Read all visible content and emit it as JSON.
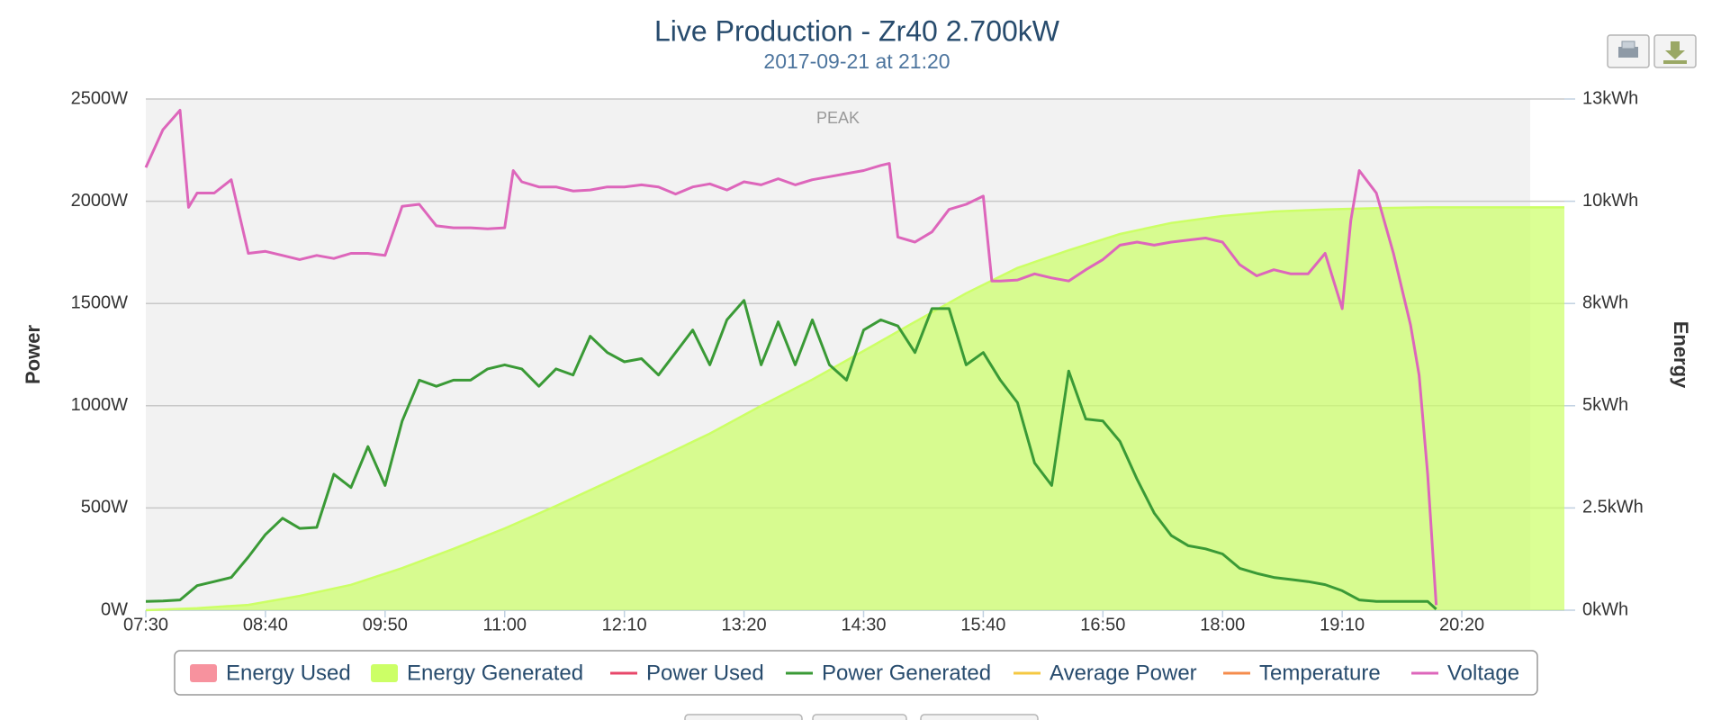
{
  "chart_data": {
    "type": "line",
    "title": "Live Production - Zr40 2.700kW",
    "subtitle": "2017-09-21 at 21:20",
    "y_label": "Power",
    "y2_label": "Energy",
    "xlim": [
      "07:30",
      "21:20"
    ],
    "xticks": [
      "07:30",
      "08:40",
      "09:50",
      "11:00",
      "12:10",
      "13:20",
      "14:30",
      "15:40",
      "16:50",
      "18:00",
      "19:10",
      "20:20"
    ],
    "ylim": [
      0,
      2500
    ],
    "yticks": [
      {
        "value": 0,
        "label": "0W"
      },
      {
        "value": 500,
        "label": "500W"
      },
      {
        "value": 1000,
        "label": "1000W"
      },
      {
        "value": 1500,
        "label": "1500W"
      },
      {
        "value": 2000,
        "label": "2000W"
      },
      {
        "value": 2500,
        "label": "2500W"
      }
    ],
    "y2lim": [
      0,
      12.5
    ],
    "y2ticks": [
      {
        "value": 0,
        "label": "0kWh"
      },
      {
        "value": 2.5,
        "label": "2.5kWh"
      },
      {
        "value": 5,
        "label": "5kWh"
      },
      {
        "value": 7.5,
        "label": "8kWh"
      },
      {
        "value": 10,
        "label": "10kWh"
      },
      {
        "value": 12.5,
        "label": "13kWh"
      }
    ],
    "grid": true,
    "plot_band": {
      "label": "PEAK",
      "from": "07:30",
      "to": "21:00",
      "color": "#f2f2f2"
    },
    "series": [
      {
        "name": "Energy Used",
        "type": "area",
        "color": "#f7929e",
        "axis": "y2"
      },
      {
        "name": "Energy Generated",
        "type": "area",
        "color": "#ccff66",
        "axis": "y2",
        "x": [
          "07:30",
          "08:00",
          "08:30",
          "09:00",
          "09:30",
          "10:00",
          "10:30",
          "11:00",
          "11:30",
          "12:00",
          "12:30",
          "13:00",
          "13:30",
          "14:00",
          "14:30",
          "15:00",
          "15:30",
          "16:00",
          "16:30",
          "17:00",
          "17:30",
          "18:00",
          "18:30",
          "19:00",
          "19:30",
          "20:00",
          "21:20"
        ],
        "values": [
          0,
          0.05,
          0.13,
          0.35,
          0.62,
          1.03,
          1.5,
          2.0,
          2.55,
          3.13,
          3.72,
          4.32,
          5.0,
          5.64,
          6.34,
          7.05,
          7.75,
          8.37,
          8.8,
          9.2,
          9.47,
          9.64,
          9.75,
          9.8,
          9.83,
          9.85,
          9.85
        ]
      },
      {
        "name": "Power Used",
        "type": "line",
        "color": "#e8476a"
      },
      {
        "name": "Power Generated",
        "type": "line",
        "color": "#3a9a36",
        "x": [
          "07:30",
          "07:40",
          "07:50",
          "08:00",
          "08:10",
          "08:20",
          "08:30",
          "08:40",
          "08:50",
          "09:00",
          "09:10",
          "09:20",
          "09:30",
          "09:40",
          "09:50",
          "10:00",
          "10:10",
          "10:20",
          "10:30",
          "10:40",
          "10:50",
          "11:00",
          "11:10",
          "11:20",
          "11:30",
          "11:40",
          "11:50",
          "12:00",
          "12:10",
          "12:20",
          "12:30",
          "12:40",
          "12:50",
          "13:00",
          "13:10",
          "13:20",
          "13:30",
          "13:40",
          "13:50",
          "14:00",
          "14:10",
          "14:20",
          "14:30",
          "14:40",
          "14:50",
          "15:00",
          "15:10",
          "15:20",
          "15:30",
          "15:40",
          "15:50",
          "16:00",
          "16:10",
          "16:20",
          "16:30",
          "16:40",
          "16:50",
          "17:00",
          "17:10",
          "17:20",
          "17:30",
          "17:40",
          "17:50",
          "18:00",
          "18:10",
          "18:20",
          "18:30",
          "18:40",
          "18:50",
          "19:00",
          "19:10",
          "19:20",
          "19:30",
          "19:40",
          "19:50",
          "20:00",
          "20:05"
        ],
        "values": [
          43,
          45,
          50,
          120,
          140,
          160,
          260,
          370,
          450,
          400,
          405,
          665,
          600,
          800,
          610,
          925,
          1125,
          1095,
          1125,
          1125,
          1180,
          1200,
          1180,
          1095,
          1180,
          1150,
          1340,
          1260,
          1215,
          1230,
          1150,
          1260,
          1370,
          1200,
          1420,
          1515,
          1200,
          1410,
          1200,
          1420,
          1200,
          1125,
          1370,
          1420,
          1390,
          1260,
          1475,
          1475,
          1200,
          1260,
          1125,
          1015,
          720,
          610,
          1170,
          935,
          925,
          825,
          640,
          475,
          365,
          315,
          300,
          275,
          205,
          180,
          160,
          150,
          140,
          125,
          95,
          50,
          43,
          43,
          43,
          43,
          5
        ]
      },
      {
        "name": "Average Power",
        "type": "line",
        "color": "#f5c842"
      },
      {
        "name": "Temperature",
        "type": "line",
        "color": "#f58c4c"
      },
      {
        "name": "Voltage",
        "type": "line",
        "color": "#dd66bb",
        "x": [
          "07:30",
          "07:40",
          "07:50",
          "07:55",
          "08:00",
          "08:10",
          "08:20",
          "08:30",
          "08:40",
          "08:50",
          "09:00",
          "09:10",
          "09:20",
          "09:30",
          "09:40",
          "09:50",
          "10:00",
          "10:10",
          "10:20",
          "10:30",
          "10:40",
          "10:50",
          "11:00",
          "11:05",
          "11:10",
          "11:20",
          "11:30",
          "11:40",
          "11:50",
          "12:00",
          "12:10",
          "12:20",
          "12:30",
          "12:40",
          "12:50",
          "13:00",
          "13:10",
          "13:20",
          "13:30",
          "13:40",
          "13:50",
          "14:00",
          "14:10",
          "14:20",
          "14:30",
          "14:40",
          "14:45",
          "14:50",
          "15:00",
          "15:10",
          "15:20",
          "15:30",
          "15:40",
          "15:45",
          "15:50",
          "16:00",
          "16:10",
          "16:20",
          "16:30",
          "16:40",
          "16:50",
          "17:00",
          "17:10",
          "17:20",
          "17:30",
          "17:40",
          "17:50",
          "18:00",
          "18:10",
          "18:20",
          "18:30",
          "18:40",
          "18:50",
          "19:00",
          "19:10",
          "19:15",
          "19:20",
          "19:30",
          "19:40",
          "19:50",
          "19:55",
          "20:00",
          "20:05"
        ],
        "values": [
          2165,
          2350,
          2445,
          1970,
          2040,
          2040,
          2105,
          1745,
          1755,
          1735,
          1715,
          1735,
          1720,
          1745,
          1745,
          1735,
          1975,
          1985,
          1880,
          1870,
          1870,
          1865,
          1870,
          2150,
          2095,
          2070,
          2070,
          2050,
          2055,
          2070,
          2070,
          2080,
          2070,
          2035,
          2070,
          2085,
          2055,
          2095,
          2080,
          2110,
          2080,
          2105,
          2120,
          2135,
          2150,
          2175,
          2185,
          1825,
          1800,
          1850,
          1960,
          1985,
          2025,
          1610,
          1610,
          1615,
          1645,
          1625,
          1610,
          1665,
          1715,
          1785,
          1800,
          1785,
          1800,
          1810,
          1820,
          1800,
          1690,
          1635,
          1665,
          1645,
          1645,
          1745,
          1475,
          1905,
          2150,
          2040,
          1745,
          1395,
          1150,
          665,
          25
        ]
      }
    ]
  }
}
